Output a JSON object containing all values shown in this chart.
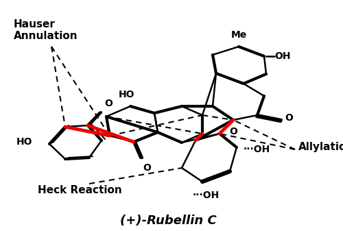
{
  "labels": {
    "hauser": "Hauser\nAnnulation",
    "heck": "Heck Reaction",
    "allylation": "Allylation",
    "title": "(+)-Rubellin C",
    "HO_left": "HO",
    "O_left": "O",
    "HO_mid": "HO",
    "O_mid": "O",
    "OH_top": "OH",
    "Me_top": "Me",
    "O_fused": "O",
    "O_lactone": "O",
    "OH_right": "OH",
    "OH_bot1": "OH",
    "OH_bot2": "OH"
  },
  "background_color": "#ffffff",
  "text_color": "#000000",
  "red_color": "#ee0000",
  "black_color": "#000000",
  "lw_thick": 3.0,
  "lw_thin": 1.8,
  "lw_red": 3.5,
  "lw_dash": 1.5,
  "fs_label": 11,
  "fs_title": 13,
  "fs_chem": 10
}
